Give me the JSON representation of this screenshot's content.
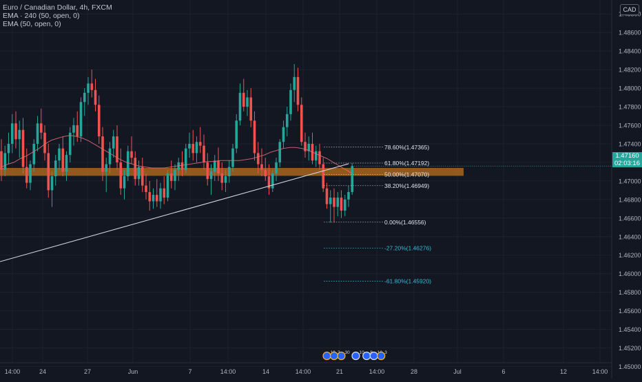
{
  "legend": {
    "symbol": "Euro / Canadian Dollar, 4h, FXCM",
    "ema240": "EMA · 240 (50, open, 0)",
    "ema50": "EMA (50, open, 0)"
  },
  "currency": "CAD",
  "last_price": {
    "value": "1.47160",
    "countdown": "02:03:16"
  },
  "colors": {
    "background": "#131722",
    "up": "#26a69a",
    "down": "#ef5350",
    "ema": "#e86b78",
    "zone": "#b56b1e",
    "trendline": "#d1d4dc",
    "fib": "#b2b5be",
    "fib_ext": "#3fb5d6",
    "grid": "#1e222d",
    "axis_text": "#b2b5be"
  },
  "chart_data": {
    "type": "candlestick",
    "title": "Euro / Canadian Dollar, 4h, FXCM",
    "symbol": "EURCAD",
    "timeframe": "4h",
    "grid": true,
    "legend_position": "top-left",
    "x_ticks": [
      "14:00",
      "24",
      "27",
      "Jun",
      "7",
      "14:00",
      "14",
      "14:00",
      "21",
      "14:00",
      "28",
      "Jul",
      "6",
      "12",
      "14:00"
    ],
    "y_ticks": [
      "1.48800",
      "1.48600",
      "1.48400",
      "1.48200",
      "1.48000",
      "1.47800",
      "1.47600",
      "1.47400",
      "1.47200",
      "1.47000",
      "1.46800",
      "1.46600",
      "1.46400",
      "1.46200",
      "1.46000",
      "1.45800",
      "1.45600",
      "1.45400",
      "1.45200",
      "1.45000"
    ],
    "ylim": [
      1.4487,
      1.4895
    ],
    "candles": [
      [
        1.4732,
        1.4745,
        1.47,
        1.4712
      ],
      [
        1.4712,
        1.4738,
        1.4705,
        1.473
      ],
      [
        1.473,
        1.4752,
        1.4718,
        1.474
      ],
      [
        1.474,
        1.4772,
        1.473,
        1.4762
      ],
      [
        1.4762,
        1.4775,
        1.4735,
        1.4745
      ],
      [
        1.4745,
        1.4765,
        1.4725,
        1.4755
      ],
      [
        1.4755,
        1.4768,
        1.4708,
        1.4715
      ],
      [
        1.4715,
        1.4735,
        1.4692,
        1.4698
      ],
      [
        1.4698,
        1.4722,
        1.469,
        1.4718
      ],
      [
        1.4718,
        1.4745,
        1.471,
        1.474
      ],
      [
        1.474,
        1.477,
        1.4732,
        1.4762
      ],
      [
        1.4762,
        1.4778,
        1.4745,
        1.4752
      ],
      [
        1.4752,
        1.476,
        1.4722,
        1.473
      ],
      [
        1.473,
        1.474,
        1.4682,
        1.469
      ],
      [
        1.469,
        1.471,
        1.4672,
        1.4705
      ],
      [
        1.4705,
        1.4728,
        1.4695,
        1.4722
      ],
      [
        1.4722,
        1.474,
        1.4712,
        1.4735
      ],
      [
        1.4735,
        1.4748,
        1.4705,
        1.471
      ],
      [
        1.471,
        1.4732,
        1.47,
        1.4728
      ],
      [
        1.4728,
        1.4758,
        1.472,
        1.4752
      ],
      [
        1.4752,
        1.4768,
        1.4738,
        1.476
      ],
      [
        1.476,
        1.4775,
        1.4742,
        1.4748
      ],
      [
        1.4748,
        1.479,
        1.4742,
        1.4785
      ],
      [
        1.4785,
        1.48,
        1.477,
        1.4795
      ],
      [
        1.4795,
        1.4812,
        1.4782,
        1.4805
      ],
      [
        1.4805,
        1.482,
        1.479,
        1.4798
      ],
      [
        1.4798,
        1.481,
        1.4775,
        1.4782
      ],
      [
        1.4782,
        1.4792,
        1.474,
        1.4748
      ],
      [
        1.4748,
        1.4758,
        1.47,
        1.471
      ],
      [
        1.471,
        1.4725,
        1.4688,
        1.4718
      ],
      [
        1.4718,
        1.4742,
        1.4708,
        1.4735
      ],
      [
        1.4735,
        1.4755,
        1.4725,
        1.4748
      ],
      [
        1.4748,
        1.476,
        1.4712,
        1.472
      ],
      [
        1.472,
        1.4735,
        1.4685,
        1.4692
      ],
      [
        1.4692,
        1.4712,
        1.468,
        1.4705
      ],
      [
        1.4705,
        1.4738,
        1.47,
        1.4732
      ],
      [
        1.4732,
        1.4748,
        1.4718,
        1.4725
      ],
      [
        1.4725,
        1.4732,
        1.4695,
        1.4702
      ],
      [
        1.4702,
        1.4722,
        1.4695,
        1.4715
      ],
      [
        1.4715,
        1.4725,
        1.4688,
        1.4695
      ],
      [
        1.4695,
        1.4708,
        1.468,
        1.4688
      ],
      [
        1.4688,
        1.47,
        1.4668,
        1.4678
      ],
      [
        1.4678,
        1.4692,
        1.467,
        1.4685
      ],
      [
        1.4685,
        1.4702,
        1.4672,
        1.4678
      ],
      [
        1.4678,
        1.4698,
        1.467,
        1.4692
      ],
      [
        1.4692,
        1.4705,
        1.4675,
        1.4682
      ],
      [
        1.4682,
        1.4712,
        1.4678,
        1.4708
      ],
      [
        1.4708,
        1.4722,
        1.4692,
        1.47
      ],
      [
        1.47,
        1.4718,
        1.469,
        1.4712
      ],
      [
        1.4712,
        1.4725,
        1.47,
        1.472
      ],
      [
        1.472,
        1.4732,
        1.4705,
        1.4712
      ],
      [
        1.4712,
        1.474,
        1.4708,
        1.4735
      ],
      [
        1.4735,
        1.4752,
        1.4725,
        1.474
      ],
      [
        1.474,
        1.4755,
        1.4722,
        1.473
      ],
      [
        1.473,
        1.4748,
        1.472,
        1.4742
      ],
      [
        1.4742,
        1.4758,
        1.473,
        1.4738
      ],
      [
        1.4738,
        1.475,
        1.4712,
        1.472
      ],
      [
        1.472,
        1.473,
        1.4695,
        1.4702
      ],
      [
        1.4702,
        1.4718,
        1.4685,
        1.471
      ],
      [
        1.471,
        1.4728,
        1.47,
        1.4722
      ],
      [
        1.4722,
        1.4736,
        1.47,
        1.4708
      ],
      [
        1.4708,
        1.472,
        1.469,
        1.4698
      ],
      [
        1.4698,
        1.4712,
        1.4688,
        1.4705
      ],
      [
        1.4705,
        1.4722,
        1.4698,
        1.4715
      ],
      [
        1.4715,
        1.474,
        1.471,
        1.4735
      ],
      [
        1.4735,
        1.4772,
        1.473,
        1.4765
      ],
      [
        1.4765,
        1.4805,
        1.476,
        1.4795
      ],
      [
        1.4795,
        1.481,
        1.4775,
        1.478
      ],
      [
        1.478,
        1.4798,
        1.477,
        1.479
      ],
      [
        1.479,
        1.48,
        1.4758,
        1.4765
      ],
      [
        1.4765,
        1.4775,
        1.4722,
        1.473
      ],
      [
        1.473,
        1.4742,
        1.4708,
        1.4718
      ],
      [
        1.4718,
        1.4735,
        1.4705,
        1.4712
      ],
      [
        1.4712,
        1.4725,
        1.47,
        1.4705
      ],
      [
        1.4705,
        1.4718,
        1.4685,
        1.4692
      ],
      [
        1.4692,
        1.4712,
        1.4688,
        1.4708
      ],
      [
        1.4708,
        1.4725,
        1.47,
        1.472
      ],
      [
        1.472,
        1.4745,
        1.4715,
        1.4742
      ],
      [
        1.4742,
        1.4765,
        1.4735,
        1.4758
      ],
      [
        1.4758,
        1.478,
        1.4748,
        1.4772
      ],
      [
        1.4772,
        1.4805,
        1.4765,
        1.4798
      ],
      [
        1.4798,
        1.4826,
        1.4785,
        1.4812
      ],
      [
        1.4812,
        1.4822,
        1.4775,
        1.4782
      ],
      [
        1.4782,
        1.479,
        1.4738,
        1.4742
      ],
      [
        1.4742,
        1.4752,
        1.4725,
        1.4732
      ],
      [
        1.4732,
        1.4748,
        1.4722,
        1.474
      ],
      [
        1.474,
        1.4752,
        1.4718,
        1.4722
      ],
      [
        1.4722,
        1.4738,
        1.4715,
        1.4732
      ],
      [
        1.4732,
        1.474,
        1.4712,
        1.4718
      ],
      [
        1.4718,
        1.4725,
        1.4688,
        1.4692
      ],
      [
        1.4692,
        1.4698,
        1.467,
        1.4675
      ],
      [
        1.4675,
        1.469,
        1.4655,
        1.4682
      ],
      [
        1.4682,
        1.4692,
        1.4655,
        1.4672
      ],
      [
        1.4672,
        1.4688,
        1.4662,
        1.4682
      ],
      [
        1.4682,
        1.469,
        1.466,
        1.4668
      ],
      [
        1.4668,
        1.4685,
        1.4662,
        1.468
      ],
      [
        1.468,
        1.4695,
        1.4672,
        1.4688
      ],
      [
        1.4688,
        1.4719,
        1.4685,
        1.4716
      ]
    ],
    "ema_values": [
      1.4715,
      1.4718,
      1.472,
      1.4724,
      1.4727,
      1.4731,
      1.4735,
      1.474,
      1.4744,
      1.4746,
      1.4748,
      1.4749,
      1.4748,
      1.4746,
      1.4743,
      1.4739,
      1.4735,
      1.4731,
      1.4727,
      1.4723,
      1.472,
      1.4718,
      1.4716,
      1.4715,
      1.4714,
      1.4714,
      1.4714,
      1.4715,
      1.4716,
      1.4717,
      1.4718,
      1.4719,
      1.472,
      1.4721,
      1.4721,
      1.4722,
      1.4722,
      1.4722,
      1.4722,
      1.4723,
      1.4724,
      1.4726,
      1.4728,
      1.4731,
      1.4733,
      1.4735,
      1.4736,
      1.4736,
      1.4735,
      1.4733,
      1.473,
      1.4727,
      1.4724,
      1.472,
      1.4716,
      1.4712,
      1.4708
    ],
    "support_zone": {
      "from": 1.47055,
      "to": 1.4714
    },
    "trendline": {
      "from": [
        0,
        1.4613
      ],
      "to": [
        96,
        1.47185
      ]
    },
    "fibonacci": {
      "start_index": 89,
      "end_index": 104,
      "levels": [
        {
          "label": "78.60%(1.47365)",
          "value": 1.47365,
          "extension": false
        },
        {
          "label": "61.80%(1.47192)",
          "value": 1.47192,
          "extension": false
        },
        {
          "label": "50.00%(1.47070)",
          "value": 1.4707,
          "extension": false
        },
        {
          "label": "38.20%(1.46949)",
          "value": 1.46949,
          "extension": false
        },
        {
          "label": "0.00%(1.46556)",
          "value": 1.46556,
          "extension": false
        },
        {
          "label": "-27.20%(1.46276)",
          "value": 1.46276,
          "extension": true
        },
        {
          "label": "-61.80%(1.45920)",
          "value": 1.4592,
          "extension": true
        }
      ]
    },
    "event_markers": [
      {
        "index": 90,
        "label": "10",
        "color": "#f0b429"
      },
      {
        "index": 92,
        "label": "2",
        "color": "#f0b429"
      },
      {
        "index": 94,
        "label": "30",
        "color": "#f0b429"
      },
      {
        "index": 98,
        "label": "10",
        "color": "#e0e0e0"
      },
      {
        "index": 101,
        "label": "8",
        "color": "#e0e0e0"
      },
      {
        "index": 103,
        "label": "10",
        "color": "#e0e0e0"
      },
      {
        "index": 105,
        "label": "3",
        "color": "#f0b429"
      }
    ]
  }
}
